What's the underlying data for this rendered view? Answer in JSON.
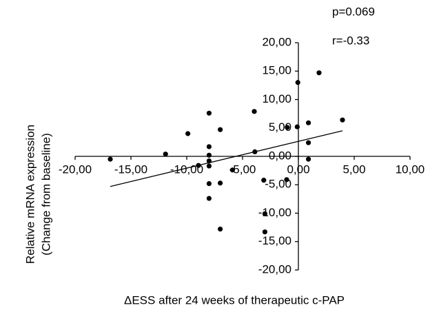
{
  "chart_data": {
    "type": "scatter",
    "annotations": [
      "p=0.069",
      "r=-0.33"
    ],
    "y_label_lines": [
      "Relative mRNA expression",
      "(Change from baseline)"
    ],
    "x_label": "ΔESS after 24 weeks of therapeutic c-PAP",
    "xlim": [
      -20,
      10
    ],
    "ylim": [
      -20,
      20
    ],
    "xticks": [
      {
        "value": -20,
        "label": "-20,00"
      },
      {
        "value": -15,
        "label": "-15,00"
      },
      {
        "value": -10,
        "label": "-10,00"
      },
      {
        "value": -5,
        "label": "-5,00"
      },
      {
        "value": 0,
        "label": "0,00"
      },
      {
        "value": 5,
        "label": "5,00"
      },
      {
        "value": 10,
        "label": "10,00"
      }
    ],
    "yticks": [
      {
        "value": 20,
        "label": "20,00"
      },
      {
        "value": 15,
        "label": "15,00"
      },
      {
        "value": 10,
        "label": "10,00"
      },
      {
        "value": 5,
        "label": "5,00"
      },
      {
        "value": 0,
        "label": "0,00"
      },
      {
        "value": -5,
        "label": "-5,00"
      },
      {
        "value": -10,
        "label": "-10,00"
      },
      {
        "value": -15,
        "label": "-15,00"
      },
      {
        "value": -20,
        "label": "-20,00"
      }
    ],
    "color": "#000000",
    "x": [
      -16.85,
      -11.9,
      -9.9,
      -8.95,
      -8.0,
      -8.0,
      -8.0,
      -8.0,
      -8.0,
      -8.0,
      -8.0,
      -7.0,
      -7.0,
      -7.0,
      -5.9,
      -3.95,
      -3.9,
      -3.1,
      -3.0,
      -3.0,
      -1.05,
      -1.0,
      -0.1,
      -0.05,
      0.9,
      0.9,
      0.9,
      1.85,
      3.95
    ],
    "values": [
      -0.5,
      0.4,
      4.0,
      -1.6,
      7.6,
      1.7,
      0.2,
      -0.8,
      -1.7,
      -4.8,
      -7.4,
      4.7,
      -4.7,
      -12.8,
      -2.4,
      7.9,
      0.8,
      -4.2,
      -10.1,
      -13.3,
      -4.1,
      5.1,
      5.2,
      13.0,
      5.9,
      2.4,
      -0.5,
      14.7,
      6.4
    ],
    "trendline": {
      "x": [
        -16.85,
        3.95
      ],
      "y": [
        -5.3,
        4.5
      ]
    }
  }
}
